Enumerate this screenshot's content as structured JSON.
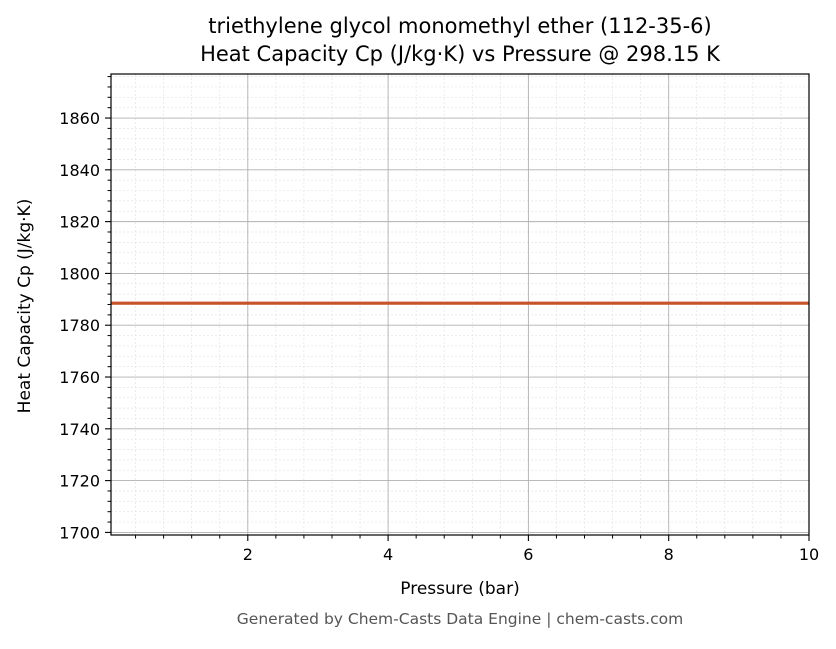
{
  "chart_data": {
    "type": "line",
    "title": "triethylene glycol monomethyl ether (112-35-6)",
    "subtitle": "Heat Capacity Cp (J/kg·K) vs Pressure @ 298.15 K",
    "xlabel": "Pressure (bar)",
    "ylabel": "Heat Capacity Cp (J/kg·K)",
    "xlim": [
      0.05,
      10
    ],
    "ylim": [
      1699,
      1877
    ],
    "x_ticks": [
      2,
      4,
      6,
      8,
      10
    ],
    "x_tick_labels": [
      "2",
      "4",
      "6",
      "8",
      "10"
    ],
    "y_ticks": [
      1700,
      1720,
      1740,
      1760,
      1780,
      1800,
      1820,
      1840,
      1860
    ],
    "y_tick_labels": [
      "1700",
      "1720",
      "1740",
      "1760",
      "1780",
      "1800",
      "1820",
      "1840",
      "1860"
    ],
    "grid": true,
    "minor_grid": true,
    "series": [
      {
        "color": "#c8532a",
        "x": [
          0.05,
          10
        ],
        "y": [
          1788.5,
          1788.5
        ]
      }
    ]
  },
  "footer": "Generated by Chem-Casts Data Engine | chem-casts.com"
}
